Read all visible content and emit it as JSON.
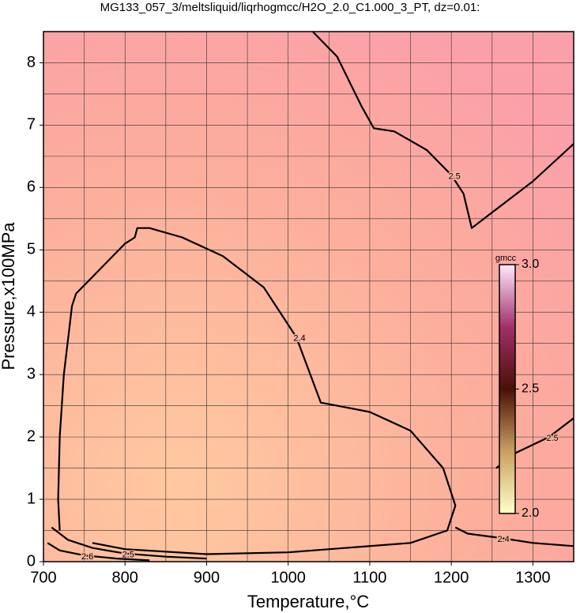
{
  "chart_data": {
    "type": "contour",
    "title": "MG133_057_3/meltsliquid/liqrhogmcc/H2O_2.0_C1.000_3_PT, dz=0.01:",
    "xlabel": "Temperature,°C",
    "ylabel": "Pressure,x100MPa",
    "xlim": [
      700,
      1350
    ],
    "ylim": [
      0,
      8.5
    ],
    "xticks": [
      700,
      800,
      900,
      1000,
      1100,
      1200,
      1300
    ],
    "yticks": [
      0,
      1,
      2,
      3,
      4,
      5,
      6,
      7,
      8
    ],
    "xminor": [
      750,
      850,
      950,
      1050,
      1150,
      1250
    ],
    "yminor": [
      0.5,
      1.5,
      2.5,
      3.5,
      4.5,
      5.5,
      6.5,
      7.5
    ],
    "grid": true,
    "colorbar": {
      "label": "gmcc",
      "lim": [
        2.0,
        3.0
      ],
      "ticks": [
        {
          "value": 2.0,
          "label": "2.0"
        },
        {
          "value": 2.5,
          "label": "2.5"
        },
        {
          "value": 3.0,
          "label": "3.0"
        }
      ],
      "colors": [
        "#ffffc8",
        "#c8a060",
        "#4a1008",
        "#a03068",
        "#ffe8ff"
      ]
    },
    "contours": [
      {
        "level": 2.4,
        "x": [
          720,
          718,
          720,
          725,
          735,
          740,
          770,
          800,
          812,
          815,
          830,
          870,
          920,
          970,
          1010,
          1030,
          1040,
          1060,
          1100,
          1150,
          1190,
          1205,
          1195,
          1150,
          1000,
          900,
          800,
          760
        ],
        "y": [
          0.5,
          1.0,
          2.0,
          3.0,
          4.1,
          4.3,
          4.7,
          5.1,
          5.2,
          5.35,
          5.35,
          5.2,
          4.9,
          4.4,
          3.6,
          2.9,
          2.55,
          2.5,
          2.4,
          2.1,
          1.5,
          0.9,
          0.5,
          0.3,
          0.15,
          0.12,
          0.2,
          0.3
        ]
      },
      {
        "level": 2.4,
        "x": [
          1205,
          1220,
          1260,
          1300,
          1350
        ],
        "y": [
          0.55,
          0.45,
          0.38,
          0.3,
          0.25
        ]
      },
      {
        "level": 2.5,
        "x": [
          1030,
          1060,
          1090,
          1105,
          1130,
          1170,
          1200,
          1215,
          1225,
          1250,
          1300,
          1350
        ],
        "y": [
          8.5,
          8.1,
          7.3,
          6.95,
          6.9,
          6.6,
          6.2,
          5.9,
          5.35,
          5.6,
          6.1,
          6.7
        ]
      },
      {
        "level": 2.5,
        "x": [
          1255,
          1280,
          1320,
          1350
        ],
        "y": [
          1.5,
          1.75,
          2.0,
          2.3
        ]
      },
      {
        "level": 2.5,
        "x": [
          710,
          730,
          760,
          800,
          850,
          900
        ],
        "y": [
          0.55,
          0.35,
          0.22,
          0.13,
          0.08,
          0.05
        ]
      },
      {
        "level": 2.6,
        "x": [
          705,
          720,
          750,
          790,
          830
        ],
        "y": [
          0.3,
          0.18,
          0.1,
          0.05,
          0.02
        ]
      }
    ]
  }
}
